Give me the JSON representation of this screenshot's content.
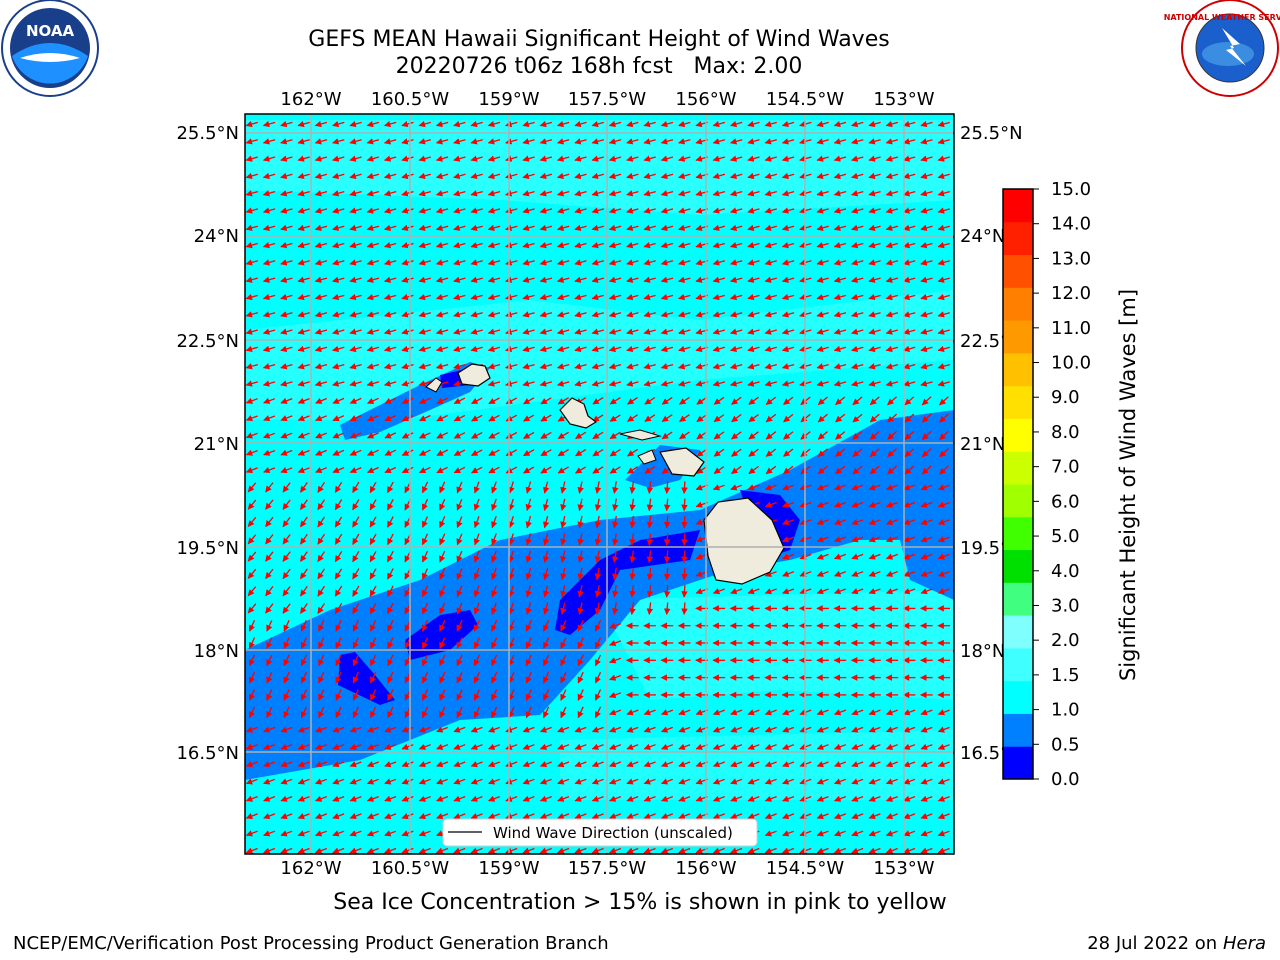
{
  "title": {
    "line1": "GEFS MEAN Hawaii Significant Height of Wind Waves",
    "line2": "20220726 t06z 168h fcst   Max: 2.00"
  },
  "logos": {
    "left": "NOAA",
    "right": "NATIONAL WEATHER SERVICE"
  },
  "map": {
    "lon_ticks": [
      "162°W",
      "160.5°W",
      "159°W",
      "157.5°W",
      "156°W",
      "154.5°W",
      "153°W"
    ],
    "lat_ticks": [
      "25.5°N",
      "24°N",
      "22.5°N",
      "21°N",
      "19.5°N",
      "18°N",
      "16.5°N"
    ],
    "legend": "Wind Wave Direction (unscaled)",
    "colors": {
      "ocean_high": "#00ffff",
      "ocean_mid": "#0080ff",
      "ocean_low": "#0000ff",
      "land": "#efebdd",
      "arrows": "#ff0000",
      "grid": "#b0b0b0"
    }
  },
  "colorbar": {
    "label": "Significant Height of Wind Waves [m]",
    "tick_labels": [
      "0.0",
      "0.5",
      "1.0",
      "1.5",
      "2.0",
      "3.0",
      "4.0",
      "5.0",
      "6.0",
      "7.0",
      "8.0",
      "9.0",
      "10.0",
      "11.0",
      "12.0",
      "13.0",
      "14.0",
      "15.0"
    ],
    "colors": [
      "#0000ff",
      "#0080ff",
      "#00ffff",
      "#40ffff",
      "#80ffff",
      "#40ff80",
      "#00e000",
      "#40ff00",
      "#a0ff00",
      "#ccff00",
      "#ffff00",
      "#ffe000",
      "#ffc000",
      "#ff9900",
      "#ff8000",
      "#ff5000",
      "#ff2000",
      "#ff0000"
    ]
  },
  "footer": {
    "note": "Sea Ice Concentration > 15% is shown in pink to yellow",
    "left": "NCEP/EMC/Verification Post Processing Product Generation Branch",
    "right_date": "28 Jul 2022 on ",
    "right_host": "Hera"
  }
}
